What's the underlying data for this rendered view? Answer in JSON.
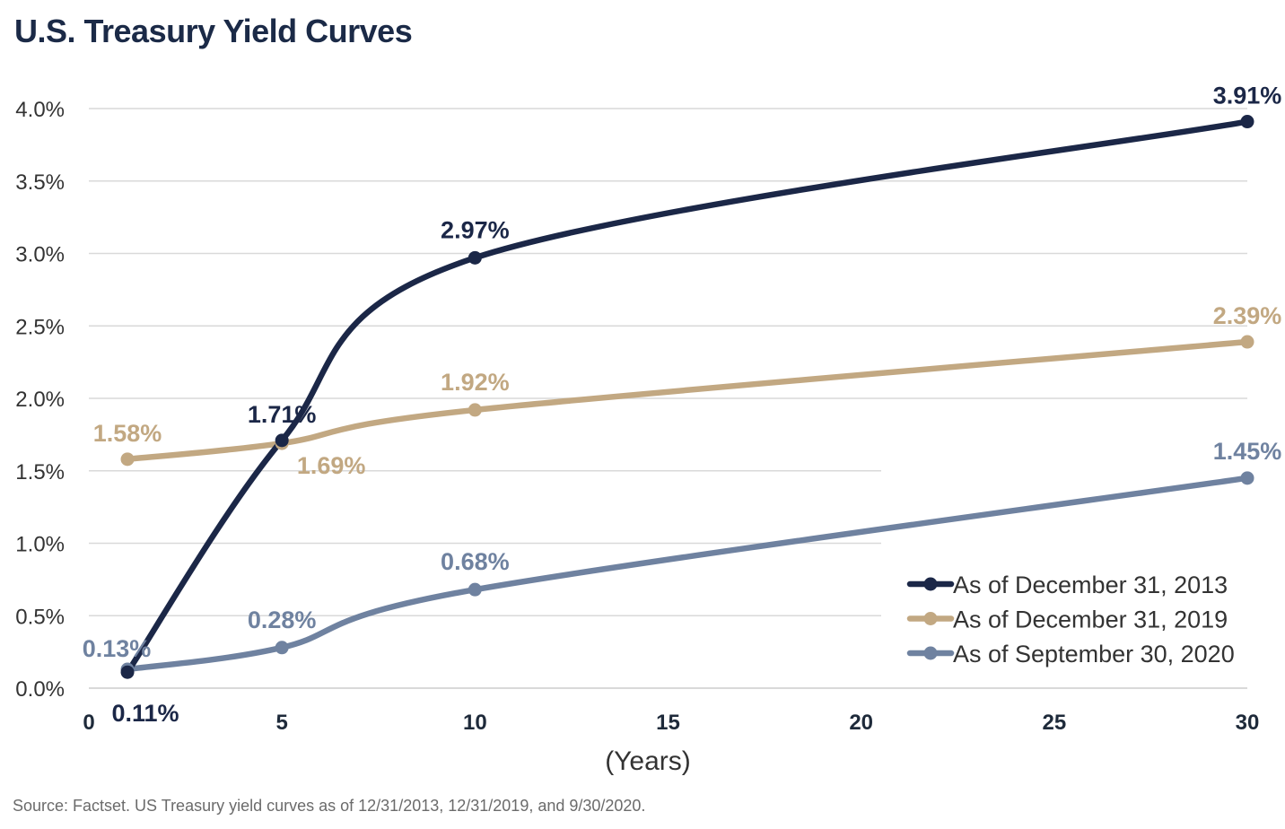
{
  "title": "U.S. Treasury Yield Curves",
  "source": "Source: Factset. US Treasury yield curves as of 12/31/2013, 12/31/2019, and 9/30/2020.",
  "colors": {
    "title": "#1b2a47",
    "grid": "#d9d9d9"
  },
  "chart_data": {
    "type": "line",
    "title": "U.S. Treasury Yield Curves",
    "xlabel": "(Years)",
    "ylabel": "",
    "xlim": [
      0,
      30
    ],
    "ylim": [
      0,
      4.0
    ],
    "x_ticks": [
      "0",
      "5",
      "10",
      "15",
      "20",
      "25",
      "30"
    ],
    "y_ticks": [
      "0.0%",
      "0.5%",
      "1.0%",
      "1.5%",
      "2.0%",
      "2.5%",
      "3.0%",
      "3.5%",
      "4.0%"
    ],
    "grid": true,
    "legend_position": "bottom-right",
    "x": [
      1,
      5,
      10,
      30
    ],
    "series": [
      {
        "name": "As of December 31, 2013",
        "color": "#1b2747",
        "values": [
          0.11,
          1.71,
          2.97,
          3.91
        ],
        "labels": [
          "0.11%",
          "1.71%",
          "2.97%",
          "3.91%"
        ]
      },
      {
        "name": "As of December 31, 2019",
        "color": "#c2a882",
        "values": [
          1.58,
          1.69,
          1.92,
          2.39
        ],
        "labels": [
          "1.58%",
          "1.69%",
          "1.92%",
          "2.39%"
        ]
      },
      {
        "name": "As of September 30, 2020",
        "color": "#6f82a0",
        "values": [
          0.13,
          0.28,
          0.68,
          1.45
        ],
        "labels": [
          "0.13%",
          "0.28%",
          "0.68%",
          "1.45%"
        ]
      }
    ]
  }
}
